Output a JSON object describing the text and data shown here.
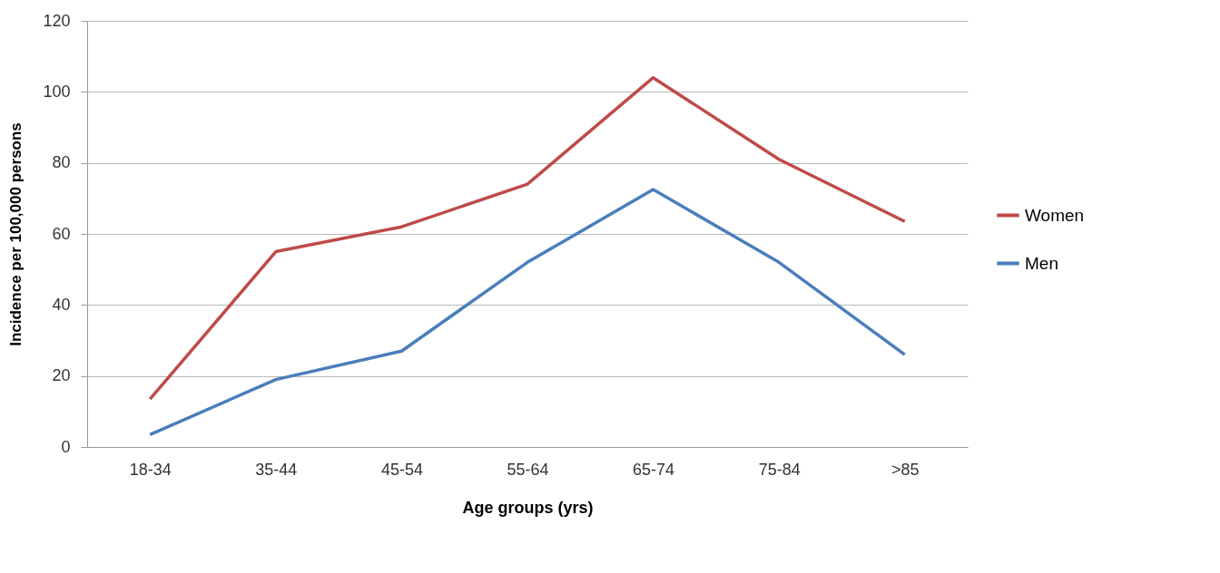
{
  "chart_data": {
    "type": "line",
    "xlabel": "Age groups (yrs)",
    "ylabel": "Incidence per 100,000 persons",
    "categories": [
      "18-34",
      "35-44",
      "45-54",
      "55-64",
      "65-74",
      "75-84",
      ">85"
    ],
    "series": [
      {
        "name": "Women",
        "color": "#be4b48",
        "values": [
          13.5,
          55,
          62,
          74,
          104,
          81,
          63.5
        ]
      },
      {
        "name": "Men",
        "color": "#4a7ebb",
        "values": [
          3.5,
          19,
          27,
          52,
          72.5,
          52,
          26
        ]
      }
    ],
    "ylim": [
      0,
      120
    ],
    "yticks": [
      0,
      20,
      40,
      60,
      80,
      100,
      120
    ],
    "grid": "y",
    "legend": "right",
    "marker": "none",
    "line_style": "solid"
  }
}
